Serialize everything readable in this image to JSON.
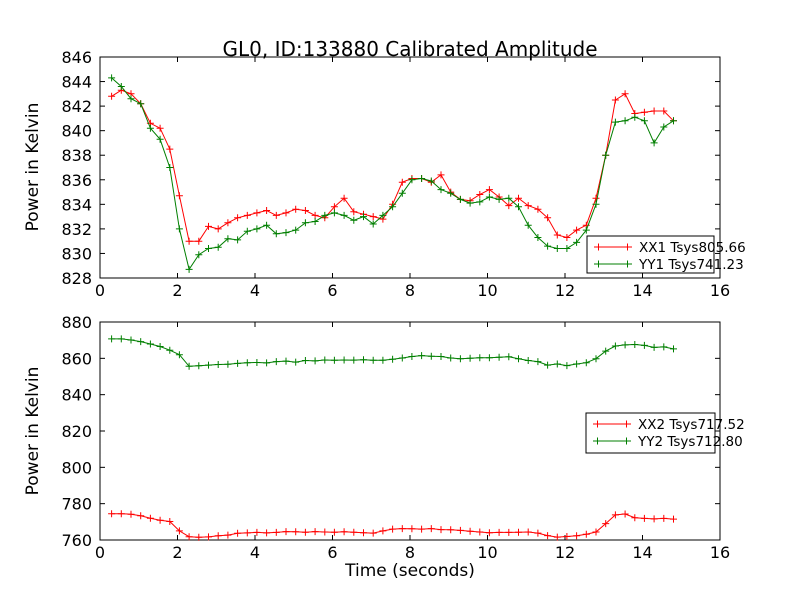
{
  "window": {
    "background": "#ffffff",
    "text_color": "#000000"
  },
  "chart_data": [
    {
      "type": "line",
      "title": "GL0, ID:133880 Calibrated Amplitude",
      "xlabel": "",
      "ylabel": "Power in Kelvin",
      "xlim": [
        0,
        16
      ],
      "ylim": [
        828,
        846
      ],
      "xticks": [
        0,
        2,
        4,
        6,
        8,
        10,
        12,
        14,
        16
      ],
      "yticks": [
        828,
        830,
        832,
        834,
        836,
        838,
        840,
        842,
        844,
        846
      ],
      "grid": false,
      "legend_position": "lower right",
      "x": [
        0.3,
        0.55,
        0.8,
        1.05,
        1.3,
        1.55,
        1.8,
        2.05,
        2.3,
        2.55,
        2.8,
        3.05,
        3.3,
        3.55,
        3.8,
        4.05,
        4.3,
        4.55,
        4.8,
        5.05,
        5.3,
        5.55,
        5.8,
        6.05,
        6.3,
        6.55,
        6.8,
        7.05,
        7.3,
        7.55,
        7.8,
        8.05,
        8.3,
        8.55,
        8.8,
        9.05,
        9.3,
        9.55,
        9.8,
        10.05,
        10.3,
        10.55,
        10.8,
        11.05,
        11.3,
        11.55,
        11.8,
        12.05,
        12.3,
        12.55,
        12.8,
        13.05,
        13.3,
        13.55,
        13.8,
        14.05,
        14.3,
        14.55,
        14.8
      ],
      "series": [
        {
          "name": "XX1 Tsys805.66",
          "color": "#ff0000",
          "marker": "+",
          "values": [
            842.8,
            843.3,
            843.0,
            842.2,
            840.6,
            840.2,
            838.5,
            834.7,
            831.0,
            831.0,
            832.2,
            832.0,
            832.5,
            832.9,
            833.1,
            833.3,
            833.5,
            833.1,
            833.3,
            833.6,
            833.5,
            833.1,
            832.9,
            833.8,
            834.5,
            833.4,
            833.2,
            833.0,
            832.8,
            834.0,
            835.8,
            836.1,
            836.1,
            835.8,
            836.4,
            835.0,
            834.4,
            834.3,
            834.8,
            835.2,
            834.6,
            833.9,
            834.5,
            833.9,
            833.6,
            832.9,
            831.5,
            831.3,
            831.9,
            832.3,
            834.5,
            838.0,
            842.5,
            843.0,
            841.4,
            841.5,
            841.6,
            841.6,
            840.8
          ]
        },
        {
          "name": "YY1 Tsys741.23",
          "color": "#007f00",
          "marker": "+",
          "values": [
            844.3,
            843.6,
            842.6,
            842.2,
            840.2,
            839.3,
            837.0,
            832.0,
            828.7,
            829.9,
            830.4,
            830.5,
            831.2,
            831.1,
            831.8,
            832.0,
            832.3,
            831.6,
            831.7,
            831.9,
            832.5,
            832.6,
            833.1,
            833.3,
            833.1,
            832.7,
            833.0,
            832.4,
            833.1,
            833.8,
            834.9,
            836.0,
            836.1,
            835.9,
            835.2,
            834.9,
            834.4,
            834.1,
            834.2,
            834.6,
            834.4,
            834.5,
            833.8,
            832.3,
            831.3,
            830.6,
            830.4,
            830.4,
            830.9,
            831.9,
            834.0,
            838.0,
            840.7,
            840.8,
            841.1,
            840.8,
            839.0,
            840.3,
            840.8
          ]
        }
      ]
    },
    {
      "type": "line",
      "title": "",
      "xlabel": "Time (seconds)",
      "ylabel": "Power in Kelvin",
      "xlim": [
        0,
        16
      ],
      "ylim": [
        760,
        880
      ],
      "xticks": [
        0,
        2,
        4,
        6,
        8,
        10,
        12,
        14,
        16
      ],
      "yticks": [
        760,
        780,
        800,
        820,
        840,
        860,
        880
      ],
      "grid": false,
      "legend_position": "center right",
      "x": [
        0.3,
        0.55,
        0.8,
        1.05,
        1.3,
        1.55,
        1.8,
        2.05,
        2.3,
        2.55,
        2.8,
        3.05,
        3.3,
        3.55,
        3.8,
        4.05,
        4.3,
        4.55,
        4.8,
        5.05,
        5.3,
        5.55,
        5.8,
        6.05,
        6.3,
        6.55,
        6.8,
        7.05,
        7.3,
        7.55,
        7.8,
        8.05,
        8.3,
        8.55,
        8.8,
        9.05,
        9.3,
        9.55,
        9.8,
        10.05,
        10.3,
        10.55,
        10.8,
        11.05,
        11.3,
        11.55,
        11.8,
        12.05,
        12.3,
        12.55,
        12.8,
        13.05,
        13.3,
        13.55,
        13.8,
        14.05,
        14.3,
        14.55,
        14.8
      ],
      "series": [
        {
          "name": "XX2 Tsys717.52",
          "color": "#ff0000",
          "marker": "+",
          "values": [
            774.5,
            774.5,
            774.2,
            773.3,
            772.0,
            770.9,
            770.2,
            765.0,
            761.8,
            761.5,
            761.7,
            762.3,
            762.7,
            763.7,
            763.9,
            764.2,
            763.9,
            764.2,
            764.6,
            764.5,
            764.3,
            764.6,
            764.4,
            764.3,
            764.5,
            764.3,
            764.0,
            763.8,
            765.0,
            766.0,
            766.3,
            766.2,
            766.0,
            766.3,
            765.7,
            765.6,
            765.3,
            764.8,
            764.4,
            764.0,
            764.2,
            764.2,
            764.3,
            764.4,
            763.8,
            762.4,
            761.6,
            761.9,
            762.3,
            763.2,
            764.4,
            769.0,
            773.8,
            774.3,
            772.3,
            771.9,
            771.6,
            771.9,
            771.5
          ]
        },
        {
          "name": "YY2 Tsys712.80",
          "color": "#007f00",
          "marker": "+",
          "values": [
            870.7,
            870.7,
            870.1,
            869.2,
            867.9,
            866.5,
            864.5,
            862.0,
            855.6,
            855.9,
            856.3,
            856.6,
            856.7,
            857.2,
            857.6,
            857.7,
            857.5,
            858.2,
            858.5,
            857.9,
            858.8,
            858.6,
            859.1,
            858.9,
            859.1,
            859.0,
            859.2,
            858.9,
            858.9,
            859.5,
            860.2,
            861.0,
            861.5,
            861.2,
            861.0,
            860.2,
            859.8,
            860.0,
            860.3,
            860.3,
            860.6,
            860.9,
            859.8,
            858.8,
            858.2,
            856.3,
            856.9,
            856.0,
            856.9,
            857.6,
            859.8,
            864.0,
            866.8,
            867.4,
            867.6,
            867.1,
            866.0,
            866.3,
            865.2
          ]
        }
      ]
    }
  ]
}
